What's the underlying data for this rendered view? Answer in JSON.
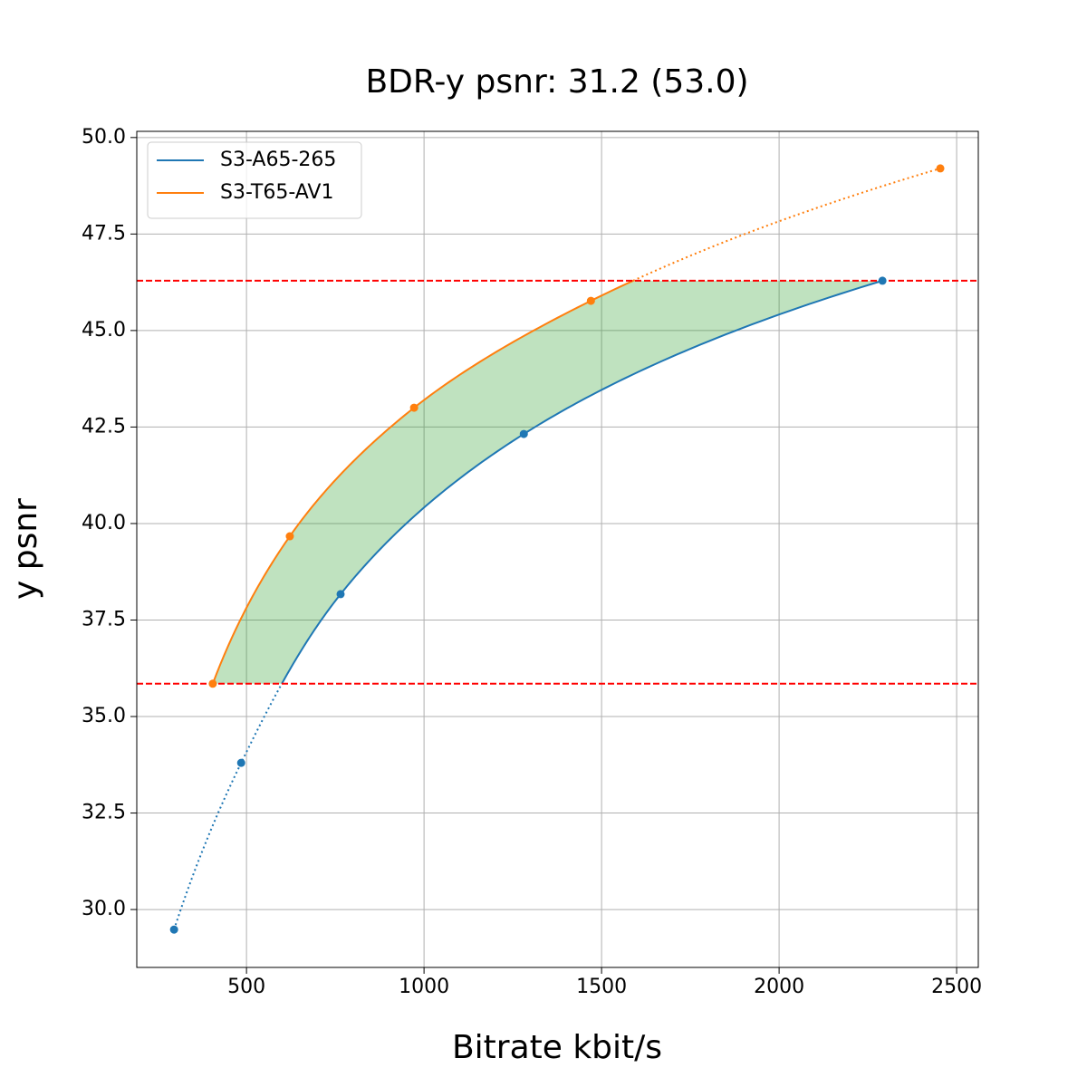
{
  "chart_data": {
    "type": "bdrate",
    "title": "BDR-y psnr: 31.2 (53.0)",
    "x_label": "Bitrate kbit/s",
    "y_label": "y psnr",
    "xlim": [
      191,
      2561
    ],
    "ylim": [
      28.5,
      50.16
    ],
    "xticks": [
      500,
      1000,
      1500,
      2000,
      2500
    ],
    "yticks": [
      {
        "value": 30,
        "label": "30.0"
      },
      {
        "value": 32.5,
        "label": "32.5"
      },
      {
        "value": 35,
        "label": "35.0"
      },
      {
        "value": 37.5,
        "label": "37.5"
      },
      {
        "value": 40,
        "label": "40.0"
      },
      {
        "value": 42.5,
        "label": "42.5"
      },
      {
        "value": 45,
        "label": "45.0"
      },
      {
        "value": 47.5,
        "label": "47.5"
      },
      {
        "value": 50,
        "label": "50.0"
      }
    ],
    "grid": true,
    "legend": "upper left",
    "bounds": [
      35.85,
      46.29
    ],
    "bounds_color": "#ff0000",
    "fill_color": "#2ca02c",
    "series": [
      {
        "name": "S3-A65-265",
        "color": "#1f77b4",
        "x": [
          296,
          485,
          765,
          1281,
          2291
        ],
        "values": [
          29.48,
          33.8,
          38.17,
          42.32,
          46.29
        ]
      },
      {
        "name": "S3-T65-AV1",
        "color": "#ff7f0e",
        "x": [
          405,
          622,
          972,
          1470,
          2454
        ],
        "values": [
          35.85,
          39.67,
          43.0,
          45.77,
          49.2
        ]
      }
    ]
  }
}
